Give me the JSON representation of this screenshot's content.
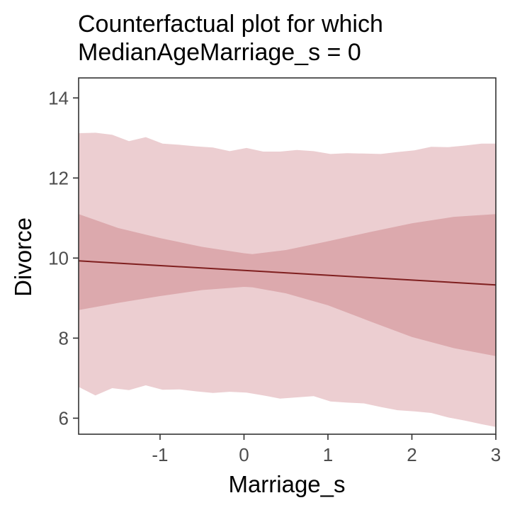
{
  "chart_data": {
    "type": "area",
    "title": [
      "Counterfactual plot for which",
      "MedianAgeMarriage_s = 0"
    ],
    "xlabel": "Marriage_s",
    "ylabel": "Divorce",
    "xlim": [
      -1.97,
      3.0
    ],
    "ylim": [
      5.6,
      14.5
    ],
    "x_ticks": [
      -1,
      0,
      1,
      2,
      3
    ],
    "y_ticks": [
      6,
      8,
      10,
      12,
      14
    ],
    "grid": false,
    "colors": {
      "prediction_interval": "#ecced1",
      "mean_interval": "#dca9ad",
      "mean_line": "#7f1f1f",
      "axis": "#333333"
    },
    "series": [
      {
        "kind": "band",
        "x": [
          -1.97,
          -1.77,
          -1.57,
          -1.37,
          -1.17,
          -0.97,
          -0.77,
          -0.57,
          -0.37,
          -0.17,
          0.03,
          0.23,
          0.43,
          0.63,
          0.83,
          1.03,
          1.23,
          1.43,
          1.63,
          1.83,
          2.03,
          2.23,
          2.43,
          2.63,
          2.83,
          3.0
        ],
        "lower": [
          6.78,
          6.57,
          6.75,
          6.7,
          6.82,
          6.71,
          6.72,
          6.67,
          6.63,
          6.66,
          6.64,
          6.57,
          6.49,
          6.52,
          6.55,
          6.42,
          6.39,
          6.37,
          6.28,
          6.2,
          6.17,
          6.13,
          6.02,
          5.94,
          5.85,
          5.78
        ],
        "upper": [
          13.12,
          13.13,
          13.08,
          12.92,
          13.02,
          12.86,
          12.83,
          12.79,
          12.76,
          12.67,
          12.75,
          12.66,
          12.66,
          12.7,
          12.67,
          12.6,
          12.62,
          12.61,
          12.6,
          12.65,
          12.69,
          12.78,
          12.77,
          12.81,
          12.86,
          12.86
        ]
      },
      {
        "kind": "band",
        "x": [
          -1.97,
          -1.5,
          -1.0,
          -0.5,
          0.0,
          0.1,
          0.5,
          1.0,
          1.5,
          2.0,
          2.5,
          3.0
        ],
        "lower": [
          8.7,
          8.88,
          9.05,
          9.2,
          9.28,
          9.27,
          9.12,
          8.82,
          8.42,
          8.03,
          7.75,
          7.55
        ],
        "upper": [
          11.1,
          10.75,
          10.5,
          10.28,
          10.12,
          10.1,
          10.2,
          10.42,
          10.65,
          10.87,
          11.03,
          11.1
        ]
      },
      {
        "kind": "line",
        "x": [
          -1.97,
          3.0
        ],
        "y": [
          9.93,
          9.33
        ]
      }
    ]
  }
}
